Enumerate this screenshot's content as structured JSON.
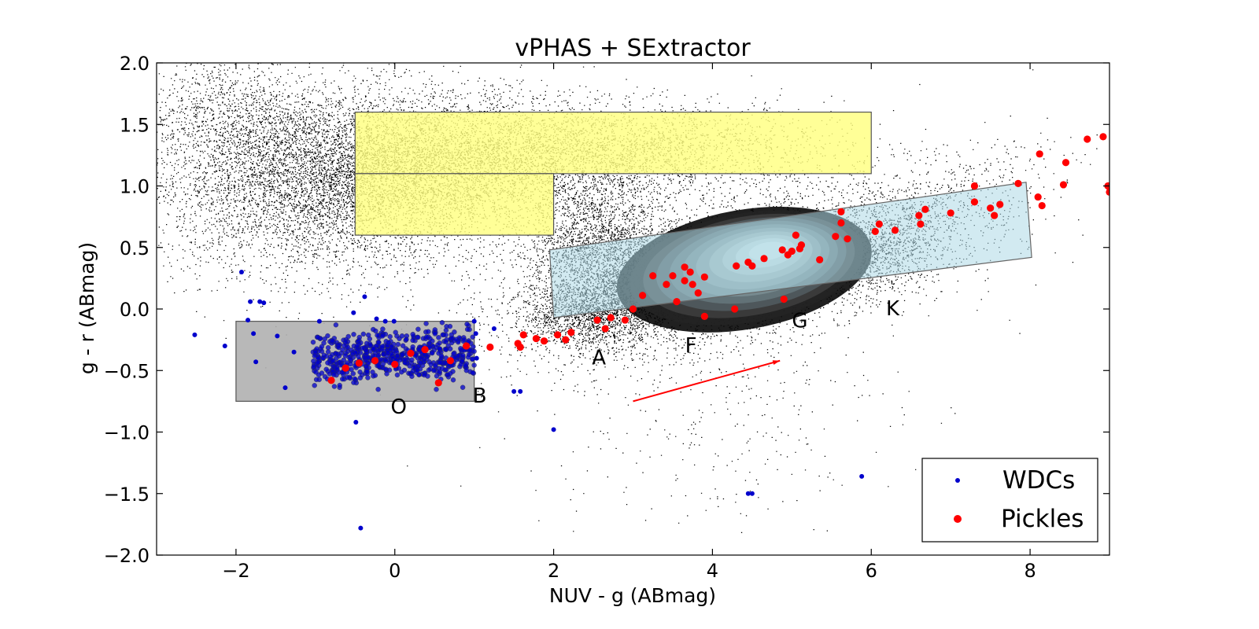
{
  "chart_data": {
    "type": "scatter",
    "title": "vPHAS + SExtractor",
    "xlabel": "NUV - g (ABmag)",
    "ylabel": "g - r (ABmag)",
    "xlim": [
      -3,
      9
    ],
    "ylim": [
      -2.0,
      2.0
    ],
    "x_ticks": [
      -2,
      0,
      2,
      4,
      6,
      8
    ],
    "x_tick_labels": [
      "−2",
      "0",
      "2",
      "4",
      "6",
      "8"
    ],
    "y_ticks": [
      2.0,
      1.5,
      1.0,
      0.5,
      0.0,
      -0.5,
      -1.0,
      -1.5,
      -2.0
    ],
    "y_tick_labels": [
      "2.0",
      "1.5",
      "1.0",
      "0.5",
      "0.0",
      "−0.5",
      "−1.0",
      "−1.5",
      "−2.0"
    ],
    "grid": false,
    "legend_placement": "bottom-right",
    "colors": {
      "background_points": "#000000",
      "wdcs": "#0000cc",
      "pickles": "#ff0000",
      "yellow_region": "#ffff80",
      "blue_region": "#add8e6",
      "gray_region": "#b0b0b0",
      "arrow": "#ff0000"
    },
    "series": [
      {
        "name": "WDCs",
        "marker": "small dot",
        "points": [
          [
            -1.93,
            0.3
          ],
          [
            -1.82,
            0.06
          ],
          [
            -1.7,
            0.06
          ],
          [
            -1.65,
            0.05
          ],
          [
            -2.52,
            -0.21
          ],
          [
            -2.14,
            -0.3
          ],
          [
            -1.85,
            -0.09
          ],
          [
            -1.78,
            -0.2
          ],
          [
            -1.75,
            -0.43
          ],
          [
            -1.48,
            -0.22
          ],
          [
            -1.38,
            -0.64
          ],
          [
            -1.27,
            -0.35
          ],
          [
            -0.95,
            -0.1
          ],
          [
            -0.52,
            -0.03
          ],
          [
            -0.38,
            0.1
          ],
          [
            -0.23,
            -0.08
          ],
          [
            -0.12,
            -0.1
          ],
          [
            -0.01,
            -0.1
          ],
          [
            -0.49,
            -0.92
          ],
          [
            -0.43,
            -1.78
          ],
          [
            1.5,
            -0.67
          ],
          [
            1.58,
            -0.67
          ],
          [
            2.0,
            -0.98
          ],
          [
            4.45,
            -1.5
          ],
          [
            4.5,
            -1.5
          ],
          [
            5.88,
            -1.36
          ],
          [
            1.0,
            -0.1
          ],
          [
            1.02,
            -0.2
          ],
          [
            1.03,
            -0.4
          ],
          [
            1.25,
            -0.16
          ]
        ],
        "dense_cluster": {
          "x_range": [
            -1.05,
            1.0
          ],
          "y_center": -0.38,
          "y_spread": 0.2,
          "count": 600
        }
      },
      {
        "name": "Pickles",
        "marker": "filled circle",
        "points": [
          [
            -0.8,
            -0.58
          ],
          [
            -0.62,
            -0.48
          ],
          [
            -0.45,
            -0.44
          ],
          [
            -0.25,
            -0.42
          ],
          [
            0.0,
            -0.45
          ],
          [
            0.2,
            -0.36
          ],
          [
            0.38,
            -0.33
          ],
          [
            0.55,
            -0.6
          ],
          [
            0.7,
            -0.42
          ],
          [
            0.9,
            -0.3
          ],
          [
            1.2,
            -0.31
          ],
          [
            1.55,
            -0.28
          ],
          [
            1.62,
            -0.21
          ],
          [
            1.58,
            -0.31
          ],
          [
            1.78,
            -0.24
          ],
          [
            1.88,
            -0.26
          ],
          [
            2.05,
            -0.21
          ],
          [
            2.15,
            -0.25
          ],
          [
            2.22,
            -0.19
          ],
          [
            2.55,
            -0.09
          ],
          [
            2.65,
            -0.16
          ],
          [
            2.72,
            -0.07
          ],
          [
            2.9,
            -0.09
          ],
          [
            3.0,
            0.0
          ],
          [
            3.12,
            0.11
          ],
          [
            3.25,
            0.27
          ],
          [
            3.42,
            0.2
          ],
          [
            3.5,
            0.27
          ],
          [
            3.55,
            0.06
          ],
          [
            3.65,
            0.23
          ],
          [
            3.65,
            0.34
          ],
          [
            3.72,
            0.3
          ],
          [
            3.75,
            0.2
          ],
          [
            3.82,
            0.13
          ],
          [
            3.9,
            0.26
          ],
          [
            3.9,
            -0.06
          ],
          [
            4.28,
            0.0
          ],
          [
            4.3,
            0.35
          ],
          [
            4.45,
            0.38
          ],
          [
            4.5,
            0.35
          ],
          [
            4.65,
            0.41
          ],
          [
            4.9,
            0.08
          ],
          [
            4.88,
            0.48
          ],
          [
            4.95,
            0.44
          ],
          [
            5.0,
            0.47
          ],
          [
            5.05,
            0.6
          ],
          [
            5.1,
            0.49
          ],
          [
            5.12,
            0.52
          ],
          [
            5.35,
            0.4
          ],
          [
            5.55,
            0.59
          ],
          [
            5.62,
            0.79
          ],
          [
            5.62,
            0.7
          ],
          [
            5.7,
            0.57
          ],
          [
            6.05,
            0.63
          ],
          [
            6.1,
            0.69
          ],
          [
            6.3,
            0.64
          ],
          [
            6.6,
            0.76
          ],
          [
            6.62,
            0.69
          ],
          [
            6.68,
            0.81
          ],
          [
            7.0,
            0.78
          ],
          [
            7.3,
            0.87
          ],
          [
            7.3,
            1.0
          ],
          [
            7.5,
            0.82
          ],
          [
            7.55,
            0.76
          ],
          [
            7.62,
            0.85
          ],
          [
            7.85,
            1.02
          ],
          [
            8.1,
            0.91
          ],
          [
            8.12,
            1.26
          ],
          [
            8.15,
            0.84
          ],
          [
            8.42,
            1.01
          ],
          [
            8.45,
            1.19
          ],
          [
            8.72,
            1.38
          ],
          [
            8.92,
            1.4
          ],
          [
            8.98,
            1.0
          ],
          [
            9.0,
            0.95
          ]
        ]
      }
    ],
    "regions": [
      {
        "kind": "yellow",
        "x": [
          -0.5,
          6.0
        ],
        "y": [
          1.1,
          1.6
        ]
      },
      {
        "kind": "yellow",
        "x": [
          -0.5,
          2.0
        ],
        "y": [
          0.6,
          1.1
        ]
      },
      {
        "kind": "gray",
        "x": [
          -2.0,
          1.0
        ],
        "y": [
          -0.75,
          -0.1
        ]
      },
      {
        "kind": "blue",
        "polygon": [
          [
            1.95,
            0.48
          ],
          [
            7.95,
            1.03
          ],
          [
            8.02,
            0.42
          ],
          [
            2.0,
            -0.07
          ]
        ]
      }
    ],
    "arrow": {
      "from": [
        3.0,
        -0.75
      ],
      "to": [
        4.85,
        -0.42
      ]
    },
    "annotations": [
      {
        "text": "O",
        "x": 0.05,
        "y": -0.85
      },
      {
        "text": "B",
        "x": 1.07,
        "y": -0.76
      },
      {
        "text": "A",
        "x": 2.57,
        "y": -0.45
      },
      {
        "text": "F",
        "x": 3.73,
        "y": -0.35
      },
      {
        "text": "G",
        "x": 5.1,
        "y": -0.15
      },
      {
        "text": "K",
        "x": 6.27,
        "y": -0.05
      }
    ],
    "legend": [
      "WDCs",
      "Pickles"
    ]
  }
}
